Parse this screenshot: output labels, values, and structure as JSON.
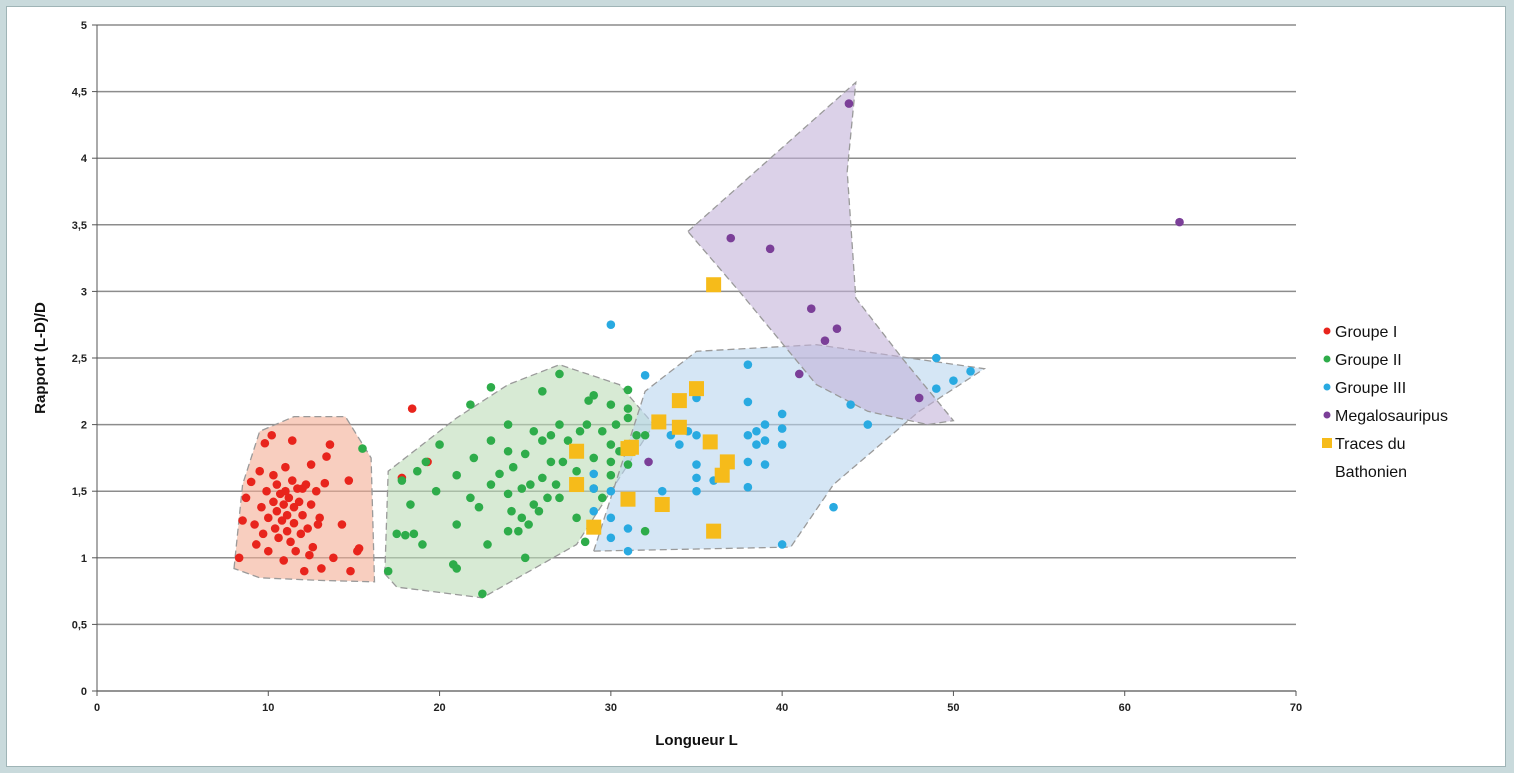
{
  "chart_data": {
    "type": "scatter",
    "xlabel": "Longueur L",
    "ylabel": "Rapport (L-D)/D",
    "xlim": [
      0,
      70
    ],
    "ylim": [
      0,
      5
    ],
    "x_ticks": [
      0,
      10,
      20,
      30,
      40,
      50,
      60,
      70
    ],
    "x_tick_labels": [
      "0",
      "10",
      "20",
      "30",
      "40",
      "50",
      "60",
      "70"
    ],
    "y_ticks": [
      0,
      0.5,
      1,
      1.5,
      2,
      2.5,
      3,
      3.5,
      4,
      4.5,
      5
    ],
    "y_tick_labels": [
      "0",
      "0,5",
      "1",
      "1,5",
      "2",
      "2,5",
      "3",
      "3,5",
      "4",
      "4,5",
      "5"
    ],
    "grid": "horizontal",
    "legend_position": "right",
    "legend_lines": [
      [
        "Groupe I"
      ],
      [
        "Groupe II"
      ],
      [
        "Groupe III"
      ],
      [
        "Megalosauripus"
      ],
      [
        "Traces du",
        "Bathonien"
      ]
    ],
    "regions": [
      {
        "series": "Groupe I",
        "color": "#f3ad95",
        "points": [
          [
            8,
            0.92
          ],
          [
            8.5,
            1.55
          ],
          [
            9.5,
            1.95
          ],
          [
            11.5,
            2.06
          ],
          [
            14.5,
            2.06
          ],
          [
            16,
            1.75
          ],
          [
            16.2,
            0.82
          ],
          [
            13,
            0.83
          ],
          [
            9.5,
            0.85
          ]
        ]
      },
      {
        "series": "Groupe II",
        "color": "#bcdcb7",
        "points": [
          [
            16.8,
            0.88
          ],
          [
            17,
            1.65
          ],
          [
            21,
            2.05
          ],
          [
            24,
            2.3
          ],
          [
            27,
            2.45
          ],
          [
            30.5,
            2.3
          ],
          [
            32.5,
            2.0
          ],
          [
            31.5,
            1.8
          ],
          [
            29,
            1.3
          ],
          [
            28,
            1.1
          ],
          [
            22.5,
            0.7
          ],
          [
            17.5,
            0.78
          ]
        ]
      },
      {
        "series": "Groupe III",
        "color": "#b9d5ef",
        "points": [
          [
            29,
            1.05
          ],
          [
            32,
            2.25
          ],
          [
            35,
            2.55
          ],
          [
            42,
            2.6
          ],
          [
            51.8,
            2.42
          ],
          [
            48,
            2.1
          ],
          [
            43,
            1.55
          ],
          [
            40.5,
            1.08
          ]
        ]
      },
      {
        "series": "Megalosauripus",
        "color": "#c3b3d8",
        "points": [
          [
            34.5,
            3.45
          ],
          [
            44.3,
            4.57
          ],
          [
            43.8,
            3.9
          ],
          [
            44.3,
            2.95
          ],
          [
            47,
            2.5
          ],
          [
            50,
            2.03
          ],
          [
            48.5,
            2.0
          ],
          [
            45,
            2.1
          ],
          [
            42,
            2.3
          ],
          [
            37.5,
            3.0
          ]
        ]
      }
    ],
    "series": [
      {
        "name": "Groupe I",
        "marker": "circle",
        "color": "#e8241c",
        "points": [
          [
            8.3,
            1.0
          ],
          [
            8.5,
            1.28
          ],
          [
            8.7,
            1.45
          ],
          [
            9.0,
            1.57
          ],
          [
            9.2,
            1.25
          ],
          [
            9.3,
            1.1
          ],
          [
            9.5,
            1.65
          ],
          [
            9.6,
            1.38
          ],
          [
            9.7,
            1.18
          ],
          [
            9.8,
            1.86
          ],
          [
            9.9,
            1.5
          ],
          [
            10.0,
            1.3
          ],
          [
            10.0,
            1.05
          ],
          [
            10.2,
            1.92
          ],
          [
            10.3,
            1.62
          ],
          [
            10.3,
            1.42
          ],
          [
            10.4,
            1.22
          ],
          [
            10.5,
            1.55
          ],
          [
            10.5,
            1.35
          ],
          [
            10.6,
            1.15
          ],
          [
            10.7,
            1.48
          ],
          [
            10.8,
            1.28
          ],
          [
            10.9,
            1.4
          ],
          [
            10.9,
            0.98
          ],
          [
            11.0,
            1.68
          ],
          [
            11.0,
            1.5
          ],
          [
            11.1,
            1.32
          ],
          [
            11.1,
            1.2
          ],
          [
            11.2,
            1.45
          ],
          [
            11.3,
            1.12
          ],
          [
            11.4,
            1.88
          ],
          [
            11.4,
            1.58
          ],
          [
            11.5,
            1.38
          ],
          [
            11.5,
            1.26
          ],
          [
            11.6,
            1.05
          ],
          [
            11.7,
            1.52
          ],
          [
            11.8,
            1.42
          ],
          [
            11.9,
            1.18
          ],
          [
            12.0,
            1.52
          ],
          [
            12.0,
            1.32
          ],
          [
            12.1,
            0.9
          ],
          [
            12.2,
            1.55
          ],
          [
            12.3,
            1.22
          ],
          [
            12.4,
            1.02
          ],
          [
            12.5,
            1.7
          ],
          [
            12.5,
            1.4
          ],
          [
            12.6,
            1.08
          ],
          [
            12.8,
            1.5
          ],
          [
            12.9,
            1.25
          ],
          [
            13.0,
            1.3
          ],
          [
            13.1,
            0.92
          ],
          [
            13.3,
            1.56
          ],
          [
            13.4,
            1.76
          ],
          [
            13.6,
            1.85
          ],
          [
            13.8,
            1.0
          ],
          [
            14.3,
            1.25
          ],
          [
            14.7,
            1.58
          ],
          [
            14.8,
            0.9
          ],
          [
            15.2,
            1.05
          ],
          [
            15.3,
            1.07
          ],
          [
            17.8,
            1.6
          ],
          [
            18.4,
            2.12
          ],
          [
            19.3,
            1.72
          ]
        ]
      },
      {
        "series_index": 1,
        "name": "Groupe II",
        "marker": "circle",
        "color": "#2eac4a",
        "points": [
          [
            15.5,
            1.82
          ],
          [
            17.0,
            0.9
          ],
          [
            17.5,
            1.18
          ],
          [
            17.8,
            1.58
          ],
          [
            18.0,
            1.17
          ],
          [
            18.3,
            1.4
          ],
          [
            18.5,
            1.18
          ],
          [
            18.7,
            1.65
          ],
          [
            19.0,
            1.1
          ],
          [
            19.2,
            1.72
          ],
          [
            19.8,
            1.5
          ],
          [
            20.0,
            1.85
          ],
          [
            20.8,
            0.95
          ],
          [
            21.0,
            1.25
          ],
          [
            21.0,
            1.62
          ],
          [
            21.0,
            0.92
          ],
          [
            21.8,
            2.15
          ],
          [
            21.8,
            1.45
          ],
          [
            22.0,
            1.75
          ],
          [
            22.3,
            1.38
          ],
          [
            22.5,
            0.73
          ],
          [
            22.8,
            1.1
          ],
          [
            23.0,
            1.55
          ],
          [
            23.0,
            1.88
          ],
          [
            23.0,
            2.28
          ],
          [
            23.5,
            1.63
          ],
          [
            24.0,
            1.2
          ],
          [
            24.0,
            1.48
          ],
          [
            24.0,
            1.8
          ],
          [
            24.0,
            2.0
          ],
          [
            24.2,
            1.35
          ],
          [
            24.3,
            1.68
          ],
          [
            24.6,
            1.2
          ],
          [
            24.8,
            1.52
          ],
          [
            24.8,
            1.3
          ],
          [
            25.0,
            1.0
          ],
          [
            25.0,
            1.78
          ],
          [
            25.2,
            1.25
          ],
          [
            25.3,
            1.55
          ],
          [
            25.5,
            1.4
          ],
          [
            25.5,
            1.95
          ],
          [
            25.8,
            1.35
          ],
          [
            26.0,
            1.6
          ],
          [
            26.0,
            1.88
          ],
          [
            26.0,
            2.25
          ],
          [
            26.3,
            1.45
          ],
          [
            26.5,
            1.72
          ],
          [
            26.5,
            1.92
          ],
          [
            26.8,
            1.55
          ],
          [
            27.0,
            2.38
          ],
          [
            27.0,
            1.45
          ],
          [
            27.0,
            2.0
          ],
          [
            27.2,
            1.72
          ],
          [
            27.5,
            1.88
          ],
          [
            28.0,
            1.3
          ],
          [
            28.0,
            1.65
          ],
          [
            28.2,
            1.95
          ],
          [
            28.5,
            1.12
          ],
          [
            28.6,
            2.0
          ],
          [
            28.7,
            2.18
          ],
          [
            29.0,
            1.52
          ],
          [
            29.0,
            1.75
          ],
          [
            29.0,
            2.22
          ],
          [
            29.5,
            1.45
          ],
          [
            29.5,
            1.95
          ],
          [
            30.0,
            1.62
          ],
          [
            30.0,
            1.72
          ],
          [
            30.0,
            1.85
          ],
          [
            30.0,
            2.15
          ],
          [
            30.3,
            2.0
          ],
          [
            30.5,
            1.8
          ],
          [
            31.0,
            1.7
          ],
          [
            31.0,
            2.05
          ],
          [
            31.0,
            2.12
          ],
          [
            31.0,
            2.26
          ],
          [
            31.0,
            1.45
          ],
          [
            31.5,
            1.92
          ],
          [
            32.0,
            1.2
          ],
          [
            32.0,
            1.92
          ]
        ]
      },
      {
        "series_index": 2,
        "name": "Groupe III",
        "marker": "circle",
        "color": "#29aae1",
        "points": [
          [
            29.0,
            1.52
          ],
          [
            29.0,
            1.35
          ],
          [
            29.0,
            1.63
          ],
          [
            30.0,
            1.15
          ],
          [
            30.0,
            1.3
          ],
          [
            30.0,
            1.5
          ],
          [
            30.0,
            2.75
          ],
          [
            31.0,
            1.05
          ],
          [
            31.0,
            1.22
          ],
          [
            32.0,
            2.37
          ],
          [
            33.0,
            1.5
          ],
          [
            33.5,
            1.92
          ],
          [
            34.0,
            1.85
          ],
          [
            34.5,
            1.95
          ],
          [
            35.0,
            1.5
          ],
          [
            35.0,
            1.6
          ],
          [
            35.0,
            1.7
          ],
          [
            35.0,
            1.92
          ],
          [
            35.0,
            2.2
          ],
          [
            36.0,
            1.58
          ],
          [
            38.0,
            1.53
          ],
          [
            38.0,
            1.72
          ],
          [
            38.0,
            1.92
          ],
          [
            38.0,
            2.17
          ],
          [
            38.0,
            2.45
          ],
          [
            38.5,
            1.95
          ],
          [
            38.5,
            1.85
          ],
          [
            39.0,
            1.7
          ],
          [
            39.0,
            1.88
          ],
          [
            39.0,
            2.0
          ],
          [
            40.0,
            1.1
          ],
          [
            40.0,
            1.85
          ],
          [
            40.0,
            1.97
          ],
          [
            40.0,
            2.08
          ],
          [
            43.0,
            1.38
          ],
          [
            44.0,
            2.15
          ],
          [
            45.0,
            2.0
          ],
          [
            49.0,
            2.5
          ],
          [
            49.0,
            2.27
          ],
          [
            50.0,
            2.33
          ],
          [
            51.0,
            2.4
          ]
        ]
      },
      {
        "series_index": 3,
        "name": "Megalosauripus",
        "marker": "circle",
        "color": "#7b3f98",
        "points": [
          [
            32.2,
            1.72
          ],
          [
            37.0,
            3.4
          ],
          [
            39.3,
            3.32
          ],
          [
            41.0,
            2.38
          ],
          [
            41.7,
            2.87
          ],
          [
            42.5,
            2.63
          ],
          [
            43.2,
            2.72
          ],
          [
            43.9,
            4.41
          ],
          [
            48.0,
            2.2
          ],
          [
            63.2,
            3.52
          ]
        ]
      },
      {
        "series_index": 4,
        "name": "Traces du Bathonien",
        "marker": "square",
        "color": "#f6bb1a",
        "points": [
          [
            28.0,
            1.8
          ],
          [
            28.0,
            1.55
          ],
          [
            29.0,
            1.23
          ],
          [
            31.0,
            1.82
          ],
          [
            31.0,
            1.44
          ],
          [
            31.2,
            1.83
          ],
          [
            32.8,
            2.02
          ],
          [
            33.0,
            1.4
          ],
          [
            34.0,
            2.18
          ],
          [
            34.0,
            1.98
          ],
          [
            35.0,
            2.27
          ],
          [
            35.8,
            1.87
          ],
          [
            36.0,
            3.05
          ],
          [
            36.0,
            1.2
          ],
          [
            36.5,
            1.62
          ],
          [
            36.8,
            1.72
          ]
        ]
      }
    ]
  }
}
